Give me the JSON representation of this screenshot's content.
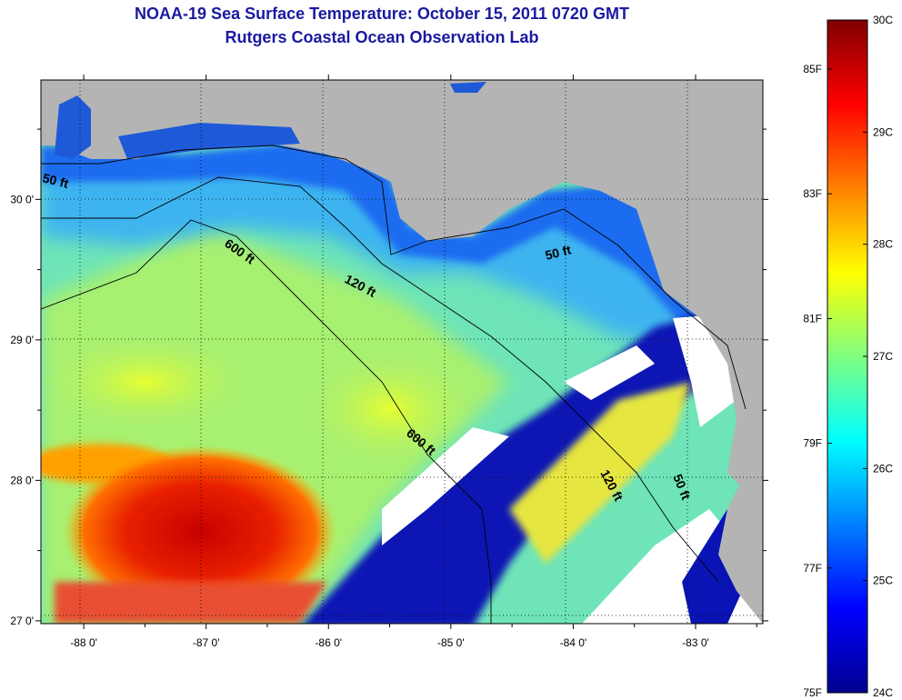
{
  "title": "NOAA-19 Sea Surface Temperature:  October 15, 2011 0720 GMT",
  "subtitle": "Rutgers Coastal Ocean Observation Lab",
  "map": {
    "lon_range": [
      -88.35,
      -82.45
    ],
    "lat_range": [
      26.98,
      30.85
    ],
    "lon_ticks": [
      {
        "value": -88,
        "label": "-88 0'"
      },
      {
        "value": -87,
        "label": "-87 0'"
      },
      {
        "value": -86,
        "label": "-86 0'"
      },
      {
        "value": -85,
        "label": "-85 0'"
      },
      {
        "value": -84,
        "label": "-84 0'"
      },
      {
        "value": -83,
        "label": "-83 0'"
      }
    ],
    "lat_ticks": [
      {
        "value": 27,
        "label": "27 0'"
      },
      {
        "value": 28,
        "label": "28 0'"
      },
      {
        "value": 29,
        "label": "29 0'"
      },
      {
        "value": 30,
        "label": "30 0'"
      }
    ],
    "land_color": "#b4b4b4",
    "cloud_color": "#ffffff",
    "grid": "dotted",
    "depth_contours": [
      {
        "label": "50 ft"
      },
      {
        "label": "120 ft"
      },
      {
        "label": "600 ft"
      },
      {
        "label": "600 ft"
      },
      {
        "label": "50 ft"
      },
      {
        "label": "120 ft"
      },
      {
        "label": "50 ft"
      }
    ]
  },
  "colorbar": {
    "celsius_range": [
      24,
      30
    ],
    "fahrenheit_range": [
      75,
      86
    ],
    "celsius_labels": [
      "30C",
      "29C",
      "28C",
      "27C",
      "26C",
      "25C",
      "24C"
    ],
    "fahrenheit_labels": [
      "85F",
      "83F",
      "81F",
      "79F",
      "77F",
      "75F"
    ],
    "colors": [
      "#00008f",
      "#0000ff",
      "#0080ff",
      "#00ffff",
      "#80ff80",
      "#ffff00",
      "#ff8000",
      "#ff0000",
      "#800000"
    ]
  }
}
